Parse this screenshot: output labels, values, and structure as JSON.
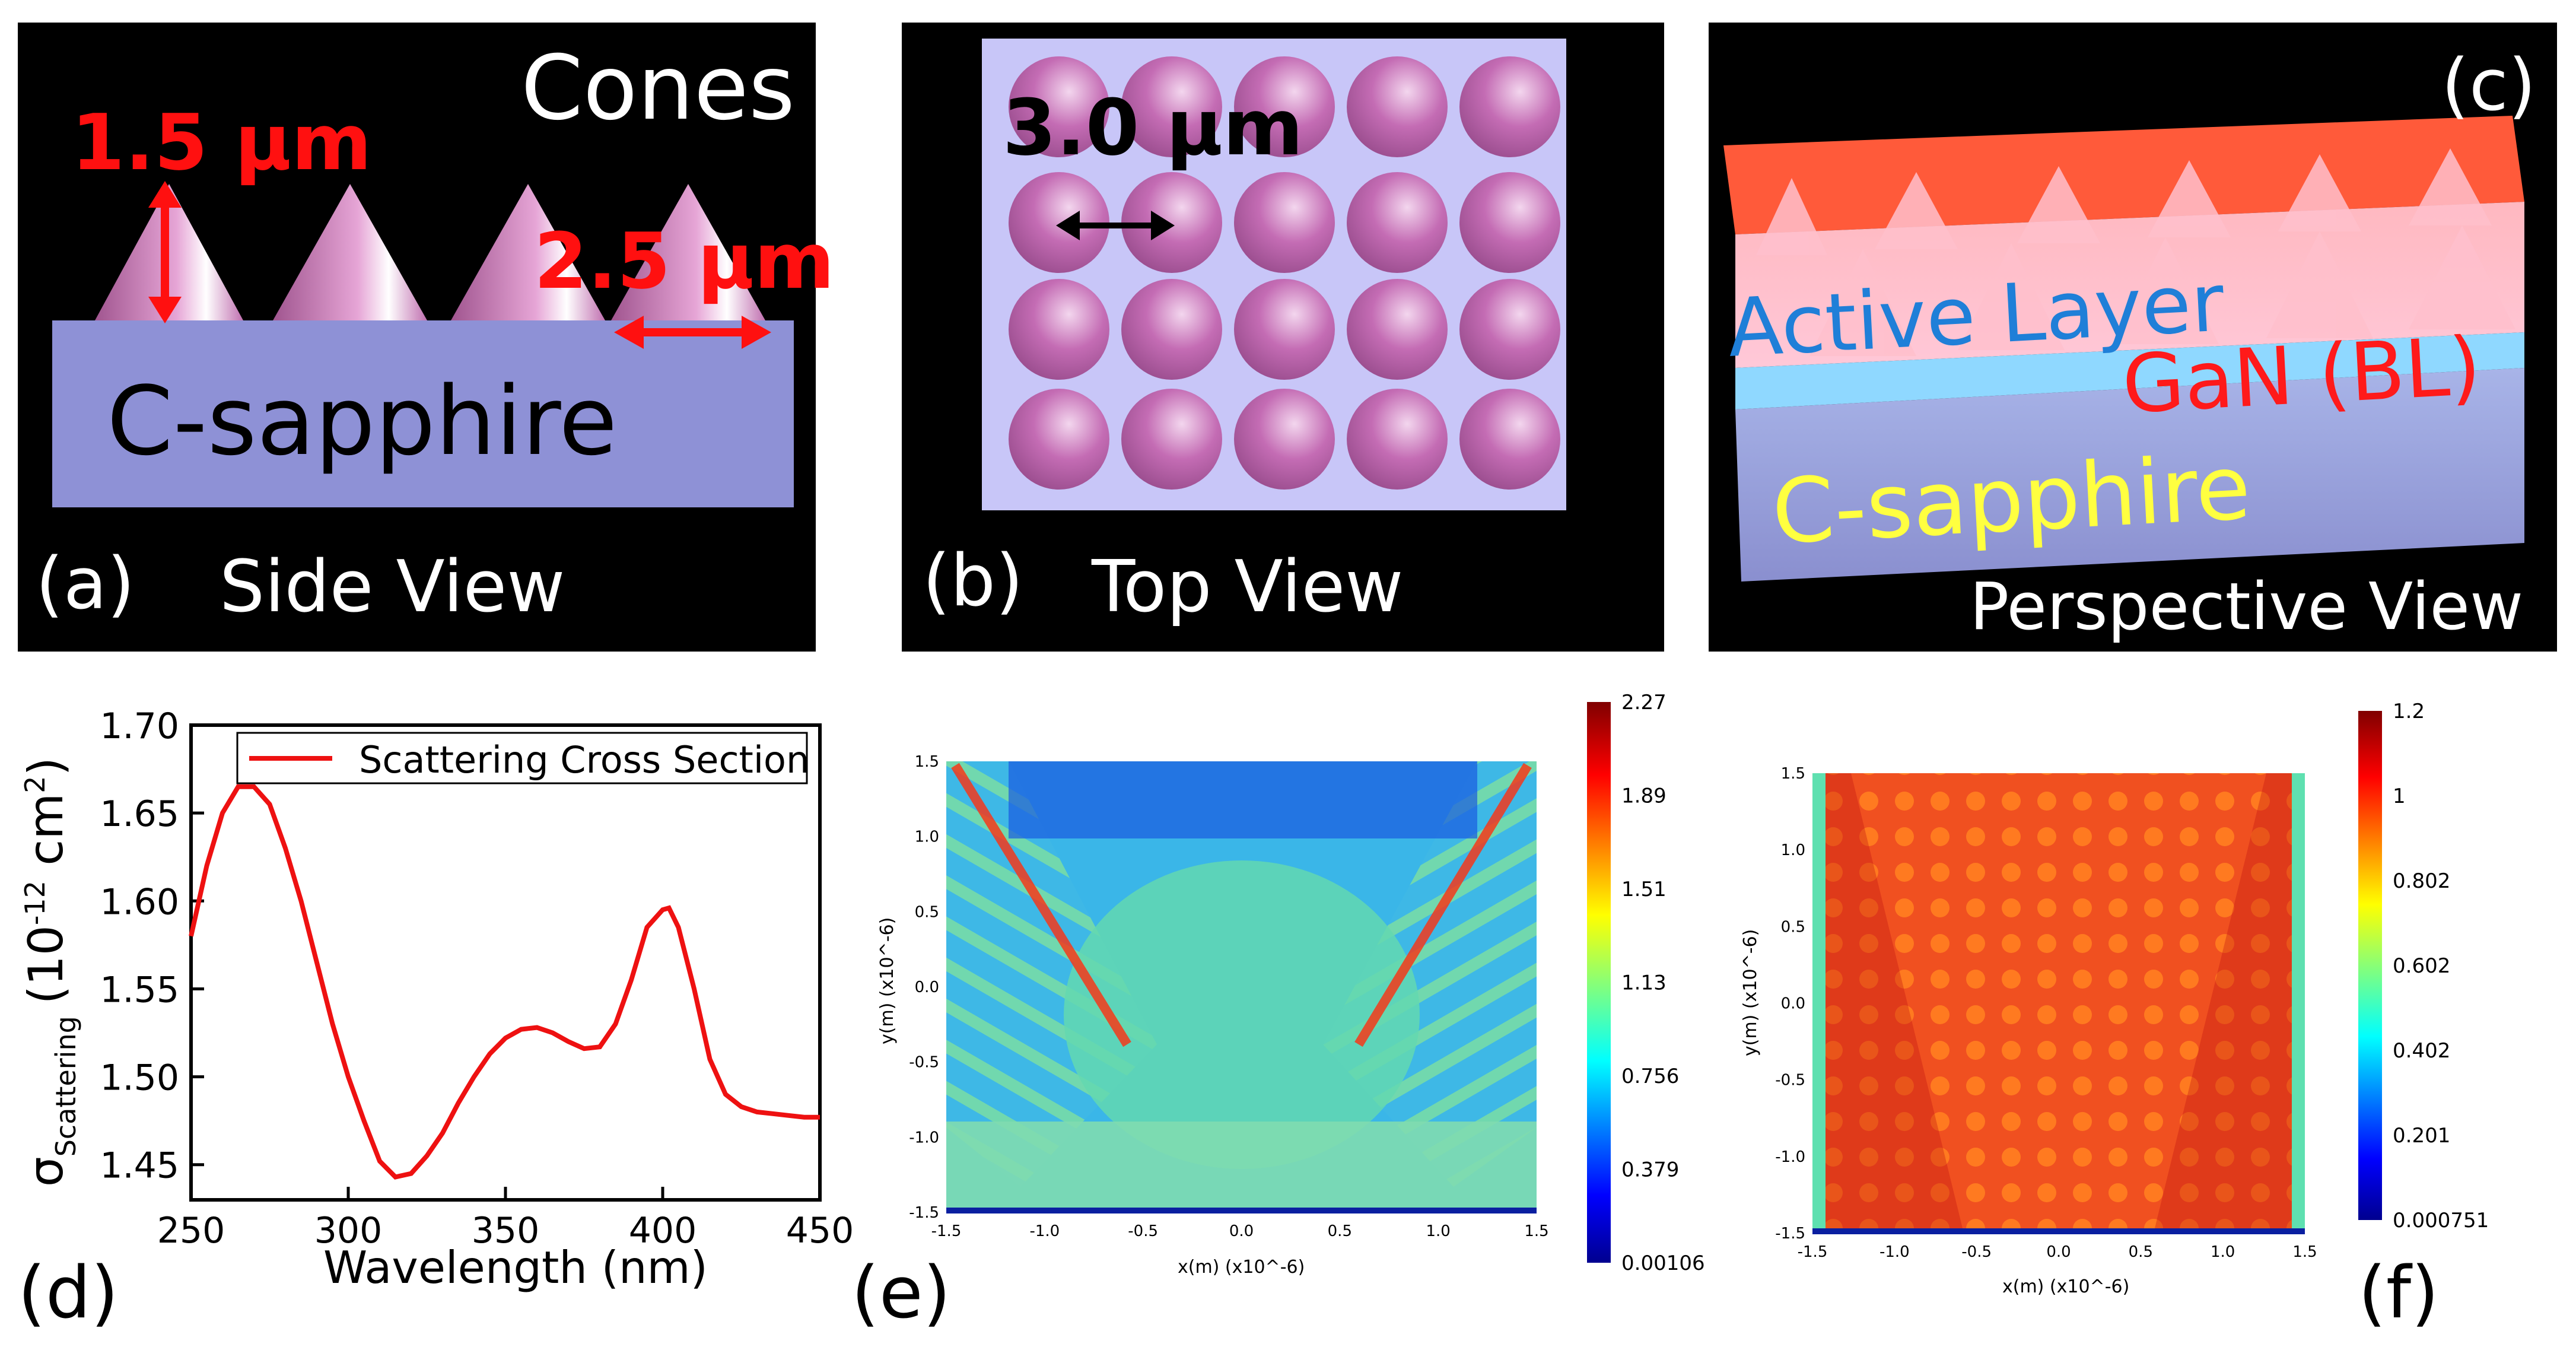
{
  "panel_a": {
    "cones_label": "Cones",
    "height_label": "1.5 μm",
    "base_label": "2.5 μm",
    "substrate_label": "C-sapphire",
    "panel_letter": "(a)",
    "view_label": "Side View"
  },
  "panel_b": {
    "pitch_label": "3.0 μm",
    "panel_letter": "(b)",
    "view_label": "Top View"
  },
  "panel_c": {
    "panel_letter": "(c)",
    "active_label": "Active Layer",
    "gan_label": "GaN (BL)",
    "substrate_label": "C-sapphire",
    "view_label": "Perspective View"
  },
  "panel_d": {
    "panel_letter": "(d)",
    "legend_label": "Scattering Cross Section",
    "ylabel_symbol": "σ",
    "ylabel_sub": "Scattering",
    "ylabel_unit_open": "(10",
    "ylabel_unit_exp": "-12",
    "ylabel_unit_cm": " cm",
    "ylabel_unit_exp2": "2",
    "ylabel_unit_close": ")",
    "y_ticks": [
      "1.45",
      "1.50",
      "1.55",
      "1.60",
      "1.65",
      "1.70"
    ],
    "x_ticks": [
      "250",
      "300",
      "350",
      "400",
      "450"
    ],
    "xlabel": "Wavelength (nm)"
  },
  "panel_e": {
    "panel_letter": "(e)",
    "colorbar_ticks": [
      "2.27",
      "1.89",
      "1.51",
      "1.13",
      "0.756",
      "0.379",
      "0.00106"
    ],
    "x_ticks": [
      "-1.5",
      "-1.0",
      "-0.5",
      "0.0",
      "0.5",
      "1.0",
      "1.5"
    ],
    "y_ticks": [
      "1.5",
      "1.0",
      "0.5",
      "0.0",
      "-0.5",
      "-1.0",
      "-1.5"
    ],
    "xlabel": "x(m) (x10^-6)",
    "ylabel": "y(m) (x10^-6)"
  },
  "panel_f": {
    "panel_letter": "(f)",
    "colorbar_ticks": [
      "1.2",
      "1",
      "0.802",
      "0.602",
      "0.402",
      "0.201",
      "0.000751"
    ],
    "x_ticks": [
      "-1.5",
      "-1.0",
      "-0.5",
      "0.0",
      "0.5",
      "1.0",
      "1.5"
    ],
    "y_ticks": [
      "1.5",
      "1.0",
      "0.5",
      "0.0",
      "-0.5",
      "-1.0",
      "-1.5"
    ],
    "xlabel": "x(m) (x10^-6)",
    "ylabel": "y(m) (x10^-6)"
  },
  "chart_data": {
    "type": "line",
    "title": "",
    "xlabel": "Wavelength (nm)",
    "ylabel": "σScattering (10^-12 cm^2)",
    "xlim": [
      250,
      450
    ],
    "ylim": [
      1.43,
      1.7
    ],
    "series": [
      {
        "name": "Scattering Cross Section",
        "x": [
          250,
          255,
          260,
          265,
          270,
          275,
          280,
          285,
          290,
          295,
          300,
          305,
          310,
          315,
          320,
          325,
          330,
          335,
          340,
          345,
          350,
          355,
          360,
          365,
          370,
          375,
          380,
          385,
          390,
          395,
          400,
          402,
          405,
          410,
          415,
          420,
          425,
          430,
          435,
          440,
          445,
          450
        ],
        "values": [
          1.58,
          1.62,
          1.65,
          1.665,
          1.665,
          1.655,
          1.63,
          1.6,
          1.565,
          1.53,
          1.5,
          1.475,
          1.452,
          1.443,
          1.445,
          1.455,
          1.468,
          1.485,
          1.5,
          1.513,
          1.522,
          1.527,
          1.528,
          1.525,
          1.52,
          1.516,
          1.517,
          1.53,
          1.555,
          1.585,
          1.595,
          1.596,
          1.585,
          1.55,
          1.51,
          1.49,
          1.483,
          1.48,
          1.479,
          1.478,
          1.477,
          1.477
        ]
      }
    ]
  }
}
